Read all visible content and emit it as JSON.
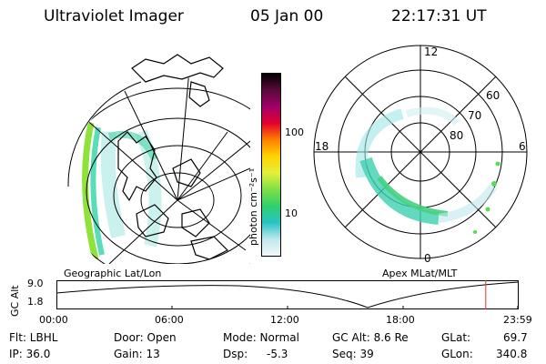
{
  "header": {
    "title": "Ultraviolet Imager",
    "date": "05 Jan 00",
    "time": "22:17:31 UT"
  },
  "colorbar": {
    "label": "photon cm⁻²s⁻¹",
    "ticks": [
      "100",
      "10"
    ],
    "gradient": [
      "#000000",
      "#5a0a3a",
      "#a0006a",
      "#e6002e",
      "#ff8000",
      "#ffd400",
      "#e4f03a",
      "#7fe046",
      "#2fd06c",
      "#27c4c4",
      "#bfe8ee",
      "#f2f7f8"
    ]
  },
  "polar": {
    "clock_labels": {
      "top": "12",
      "left": "18",
      "right": "6",
      "bottom": "0"
    },
    "lat_labels": [
      "60",
      "70",
      "80"
    ]
  },
  "panel_labels": {
    "left": "Geographic Lat/Lon",
    "right": "Apex  MLat/MLT"
  },
  "timeline": {
    "ylabel": "GC Alt",
    "ytick_top": "9.0",
    "ytick_bottom": "1.8",
    "xticks": [
      "00:00",
      "06:00",
      "12:00",
      "18:00",
      "23:59"
    ],
    "marker_hour": 22.29,
    "marker_color": "#e03030"
  },
  "info": {
    "row1": {
      "filter": "Flt: LBHL",
      "door": "Door: Open",
      "mode": "Mode: Normal",
      "gc_alt": "GC Alt: 8.6 Re",
      "glat_label": "GLat:",
      "glat_value": "69.7"
    },
    "row2": {
      "ip": "IP: 36.0",
      "gain": "Gain: 13",
      "dsp_label": "Dsp:",
      "dsp_value": "-5.3",
      "seq": "Seq: 39",
      "glon_label": "GLon:",
      "glon_value": "340.8"
    }
  }
}
